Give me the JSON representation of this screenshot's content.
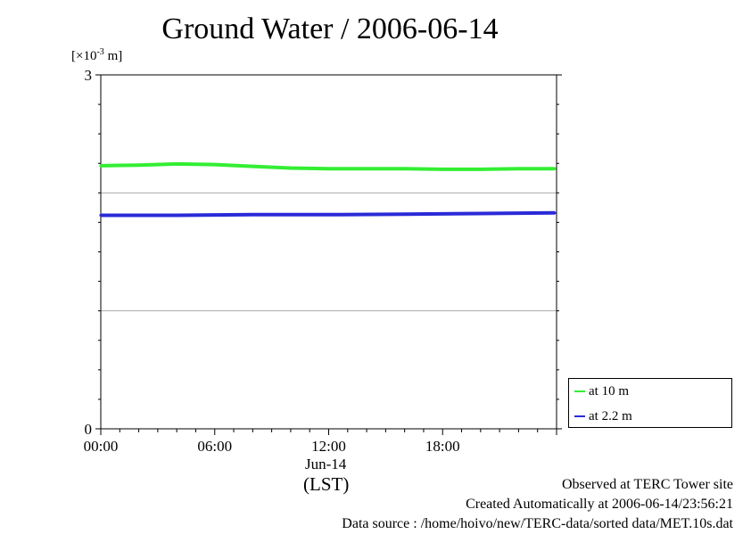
{
  "title": "Ground Water / 2006-06-14",
  "unit_prefix": "[×10",
  "unit_exp": "-3",
  "unit_suffix": " m]",
  "date_label": "Jun-14",
  "tz_label": "(LST)",
  "footer": {
    "line1": "Observed at TERC Tower site",
    "line2": "Created Automatically at 2006-06-14/23:56:21",
    "line3": "Data source : /home/hoivo/new/TERC-data/sorted  data/MET.10s.dat"
  },
  "colors": {
    "green": "#33ee33",
    "blue": "#2a2ad8",
    "grid": "#aaaaaa"
  },
  "chart_data": {
    "type": "line",
    "title": "Ground Water / 2006-06-14",
    "ylabel": "[×10-3 m]",
    "xlabel": "(LST)",
    "xlim": [
      0,
      24
    ],
    "ylim": [
      0,
      3
    ],
    "y_ticks": [
      {
        "value": 0,
        "label": "0"
      },
      {
        "value": 3,
        "label": "3"
      }
    ],
    "y_gridlines": [
      1,
      2
    ],
    "x_ticks": [
      {
        "value": 0,
        "label": "00:00"
      },
      {
        "value": 6,
        "label": "06:00"
      },
      {
        "value": 12,
        "label": "12:00"
      },
      {
        "value": 18,
        "label": "18:00"
      }
    ],
    "legend_position": "bottom-right outside",
    "series": [
      {
        "name": "at 10 m",
        "color": "#33ee33",
        "x": [
          0,
          2,
          4,
          6,
          8,
          10,
          12,
          14,
          16,
          18,
          20,
          22,
          23.9
        ],
        "y": [
          2.23,
          2.235,
          2.245,
          2.24,
          2.225,
          2.21,
          2.205,
          2.205,
          2.205,
          2.2,
          2.2,
          2.205,
          2.205
        ]
      },
      {
        "name": "at 2.2 m",
        "color": "#2a2ad8",
        "x": [
          0,
          4,
          8,
          12,
          16,
          20,
          23.9
        ],
        "y": [
          1.81,
          1.81,
          1.815,
          1.815,
          1.82,
          1.825,
          1.83
        ]
      }
    ]
  }
}
